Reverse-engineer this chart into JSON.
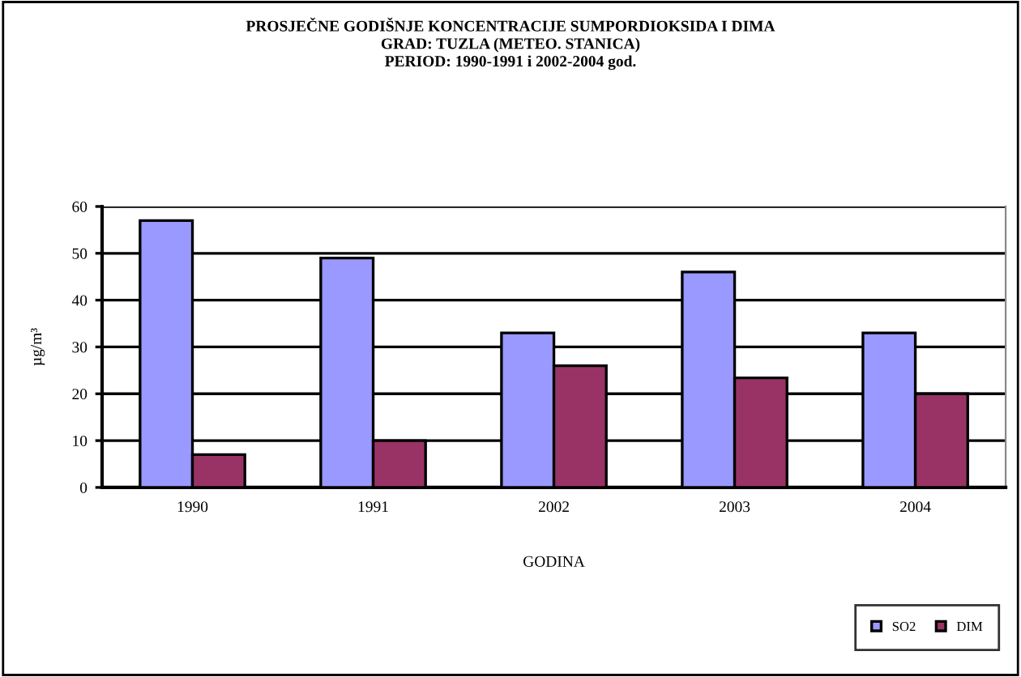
{
  "chart_data": {
    "type": "bar",
    "title": "PROSJEČNE GODIŠNJE KONCENTRACIJE SUMPORDIOKSIDA I DIMA\nGRAD: TUZLA (METEO. STANICA)\nPERIOD: 1990-1991 i 2002-2004 god.",
    "xlabel": "GODINA",
    "ylabel": "µg/m³",
    "categories": [
      "1990",
      "1991",
      "2002",
      "2003",
      "2004"
    ],
    "series": [
      {
        "name": "SO2",
        "color": "#9999ff",
        "values": [
          57,
          49,
          33,
          46,
          33
        ]
      },
      {
        "name": "DIM",
        "color": "#993366",
        "values": [
          7,
          10,
          26,
          23.4,
          20
        ]
      }
    ],
    "ylim": [
      0,
      60
    ],
    "yticks": [
      0,
      10,
      20,
      30,
      40,
      50,
      60
    ],
    "grid": "y",
    "legend": "bottom right"
  }
}
